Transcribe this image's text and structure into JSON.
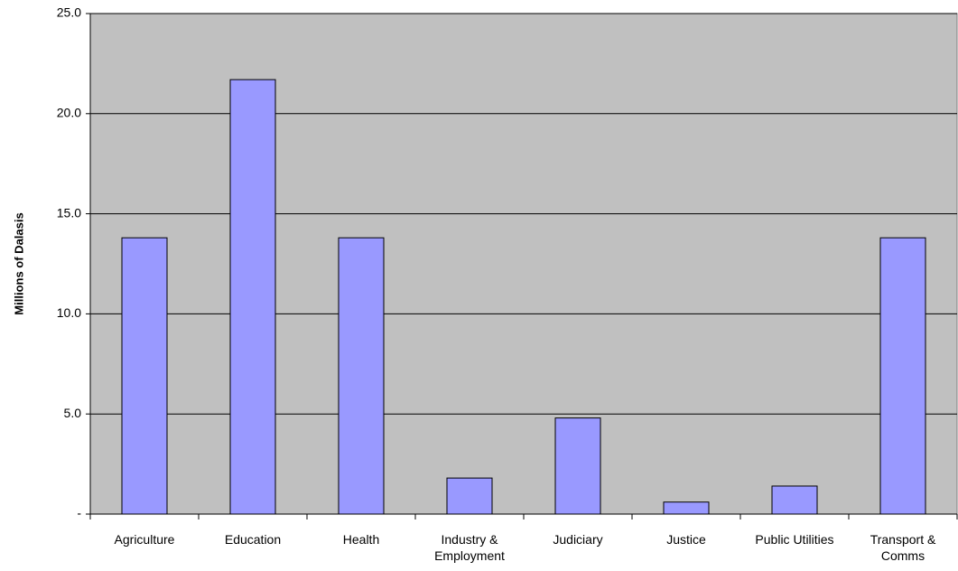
{
  "chart_data": {
    "type": "bar",
    "y_label": "Millions of Dalasis",
    "categories": [
      "Agriculture",
      "Education",
      "Health",
      "Industry & Employment",
      "Judiciary",
      "Justice",
      "Public Utilities",
      "Transport & Comms"
    ],
    "values": [
      13.8,
      21.7,
      13.8,
      1.8,
      4.8,
      0.6,
      1.4,
      13.8
    ],
    "color": "#9999ff",
    "background": "#c0c0c0",
    "ylim": [
      0,
      25
    ],
    "yticks": [
      {
        "value": 0,
        "label": "-"
      },
      {
        "value": 5,
        "label": "5.0"
      },
      {
        "value": 10,
        "label": "10.0"
      },
      {
        "value": 15,
        "label": "15.0"
      },
      {
        "value": 20,
        "label": "20.0"
      },
      {
        "value": 25,
        "label": "25.0"
      }
    ],
    "grid": true
  }
}
